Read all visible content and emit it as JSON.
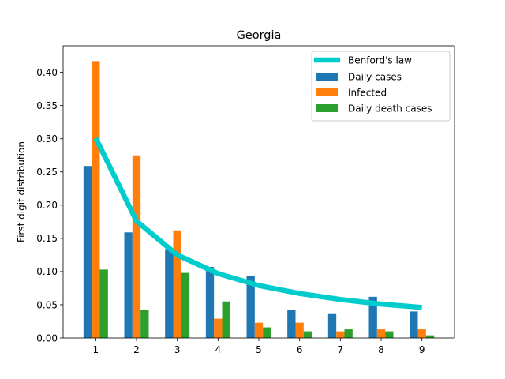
{
  "chart_data": {
    "type": "bar",
    "title": "Georgia",
    "xlabel": "",
    "ylabel": "First digit distribution",
    "x": [
      1,
      2,
      3,
      4,
      5,
      6,
      7,
      8,
      9
    ],
    "xticks": [
      "1",
      "2",
      "3",
      "4",
      "5",
      "6",
      "7",
      "8",
      "9"
    ],
    "ylim": [
      0,
      0.44
    ],
    "yticks": [
      0.0,
      0.05,
      0.1,
      0.15,
      0.2,
      0.25,
      0.3,
      0.35,
      0.4
    ],
    "ytick_labels": [
      "0.00",
      "0.05",
      "0.10",
      "0.15",
      "0.20",
      "0.25",
      "0.30",
      "0.35",
      "0.40"
    ],
    "grid": false,
    "legend_position": "top-right",
    "series": [
      {
        "name": "Daily cases",
        "kind": "bar",
        "color": "#1f77b4",
        "values": [
          0.259,
          0.159,
          0.134,
          0.107,
          0.094,
          0.042,
          0.036,
          0.062,
          0.04
        ]
      },
      {
        "name": "Infected",
        "kind": "bar",
        "color": "#ff7f0e",
        "values": [
          0.417,
          0.275,
          0.162,
          0.029,
          0.023,
          0.023,
          0.01,
          0.013,
          0.013
        ]
      },
      {
        "name": "Daily death cases",
        "kind": "bar",
        "color": "#2ca02c",
        "values": [
          0.103,
          0.042,
          0.098,
          0.055,
          0.016,
          0.01,
          0.013,
          0.01,
          0.004
        ]
      }
    ],
    "benford": {
      "name": "Benford's law",
      "kind": "line",
      "color": "#00cccc",
      "values": [
        0.301,
        0.176,
        0.125,
        0.097,
        0.079,
        0.067,
        0.058,
        0.051,
        0.046
      ]
    }
  }
}
